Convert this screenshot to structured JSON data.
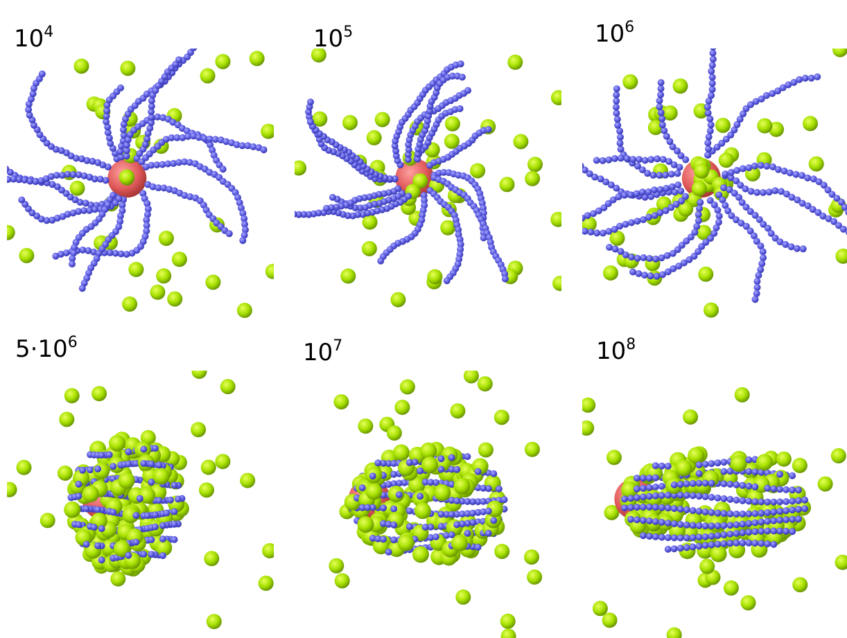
{
  "panels": [
    {
      "base": "10",
      "exponent": "4"
    },
    {
      "base": "10",
      "exponent": "5"
    },
    {
      "base": "10",
      "exponent": "6"
    },
    {
      "base": "5·10",
      "exponent": "6"
    },
    {
      "base": "10",
      "exponent": "7"
    },
    {
      "base": "10",
      "exponent": "8"
    }
  ]
}
